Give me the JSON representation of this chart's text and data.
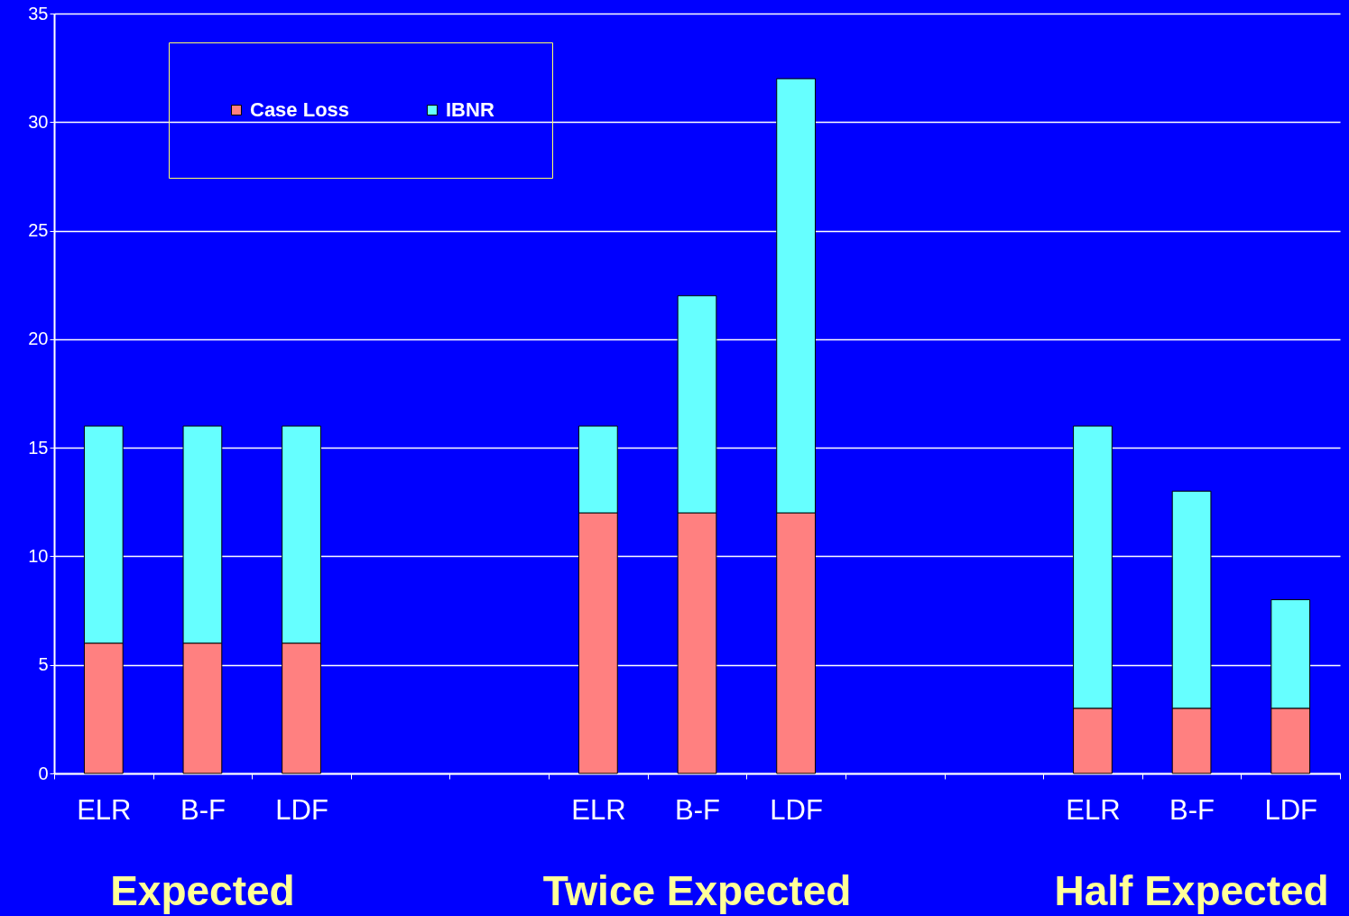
{
  "chart_data": {
    "type": "bar",
    "stacked": true,
    "categories": [
      "ELR",
      "B-F",
      "LDF",
      null,
      null,
      "ELR",
      "B-F",
      "LDF",
      null,
      null,
      "ELR",
      "B-F",
      "LDF"
    ],
    "series": [
      {
        "name": "Case Loss",
        "color": "#ff8080",
        "values": [
          6,
          6,
          6,
          null,
          null,
          12,
          12,
          12,
          null,
          null,
          3,
          3,
          3
        ]
      },
      {
        "name": "IBNR",
        "color": "#66ffff",
        "values": [
          10,
          10,
          10,
          null,
          null,
          4,
          10,
          20,
          null,
          null,
          13,
          10,
          5
        ]
      }
    ],
    "ylim": [
      0,
      35
    ],
    "yticks": [
      0,
      5,
      10,
      15,
      20,
      25,
      30,
      35
    ],
    "grid": "y",
    "legend": "top left",
    "annotations": [
      "Expected",
      "Twice Expected",
      "Half Expected"
    ]
  }
}
